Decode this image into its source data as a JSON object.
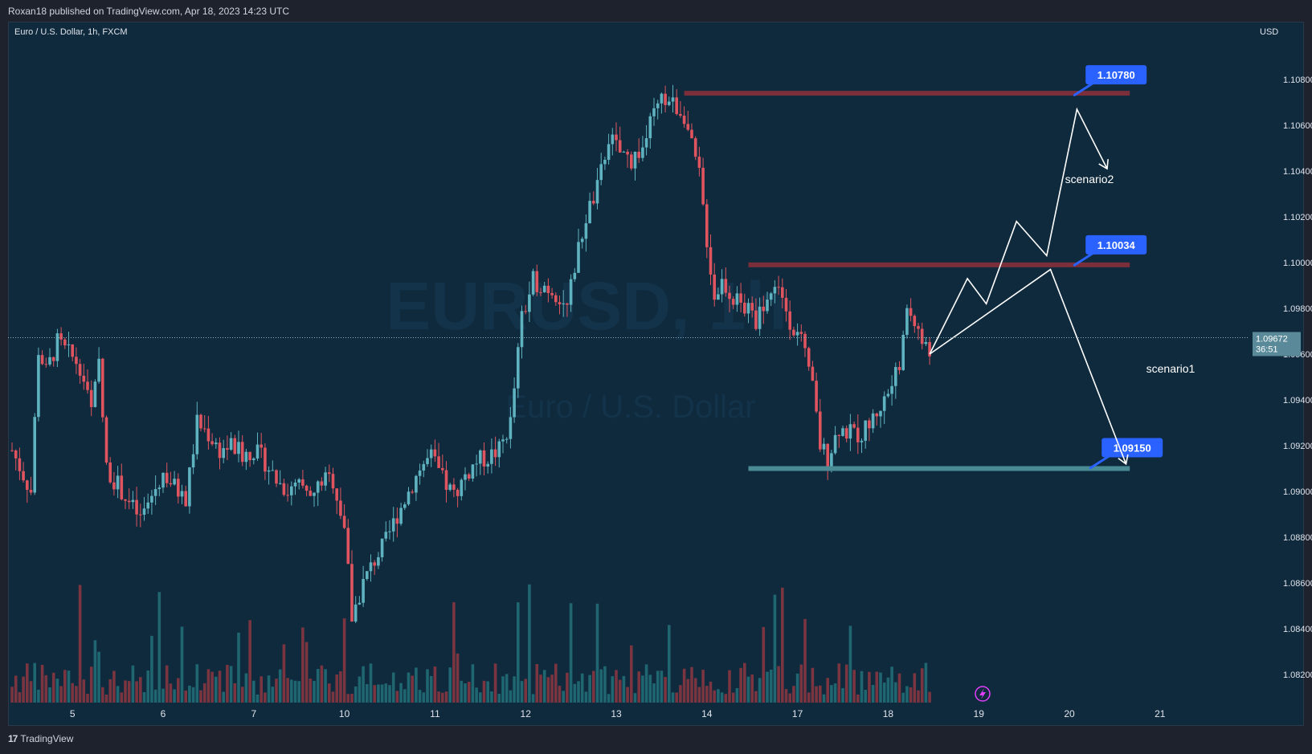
{
  "header": {
    "publish_info": "Roxan18 published on TradingView.com, Apr 18, 2023 14:23 UTC",
    "symbol_line": "Euro / U.S. Dollar, 1h, FXCM",
    "currency": "USD"
  },
  "watermark": {
    "line1": "EURUSD, 1h",
    "line2": "Euro / U.S. Dollar"
  },
  "footer": {
    "logo": "TradingView",
    "logo_mark": "17"
  },
  "colors": {
    "background": "#0f2a3d",
    "up": "#5fb3c0",
    "down": "#e0545f",
    "level_red": "#7a2f3b",
    "level_teal": "#4a8a95",
    "label_blue": "#2962ff",
    "annotation": "#ffffff",
    "price_tag": "#5a8a99"
  },
  "chart_data": {
    "type": "candlestick",
    "symbol": "EURUSD",
    "interval": "1h",
    "ylim": [
      1.0812,
      1.1102
    ],
    "y_ticks": [
      "1.10800",
      "1.10600",
      "1.10400",
      "1.10200",
      "1.10000",
      "1.09800",
      "1.09600",
      "1.09400",
      "1.09200",
      "1.09000",
      "1.08800",
      "1.08600",
      "1.08400",
      "1.08200"
    ],
    "x_ticks": [
      "5",
      "6",
      "7",
      "10",
      "11",
      "12",
      "13",
      "14",
      "17",
      "18",
      "19",
      "20",
      "21"
    ],
    "last_price": "1.09672",
    "countdown": "36:51",
    "close_path": [
      [
        0,
        1.0918
      ],
      [
        10,
        1.09
      ],
      [
        14,
        1.0962
      ],
      [
        18,
        1.0952
      ],
      [
        24,
        1.0965
      ],
      [
        30,
        1.096
      ],
      [
        36,
        1.0955
      ],
      [
        42,
        1.0935
      ],
      [
        46,
        1.0955
      ],
      [
        50,
        1.091
      ],
      [
        56,
        1.0903
      ],
      [
        62,
        1.0895
      ],
      [
        68,
        1.0888
      ],
      [
        74,
        1.0898
      ],
      [
        80,
        1.0908
      ],
      [
        86,
        1.0902
      ],
      [
        92,
        1.0896
      ],
      [
        98,
        1.093
      ],
      [
        104,
        1.0925
      ],
      [
        110,
        1.0918
      ],
      [
        116,
        1.092
      ],
      [
        122,
        1.0916
      ],
      [
        128,
        1.0918
      ],
      [
        134,
        1.0913
      ],
      [
        140,
        1.0905
      ],
      [
        146,
        1.09
      ],
      [
        152,
        1.0902
      ],
      [
        158,
        1.0896
      ],
      [
        164,
        1.0905
      ],
      [
        170,
        1.0905
      ],
      [
        176,
        1.0885
      ],
      [
        180,
        1.0845
      ],
      [
        186,
        1.086
      ],
      [
        192,
        1.087
      ],
      [
        198,
        1.0878
      ],
      [
        204,
        1.089
      ],
      [
        210,
        1.09
      ],
      [
        216,
        1.091
      ],
      [
        222,
        1.0915
      ],
      [
        228,
        1.0905
      ],
      [
        234,
        1.0898
      ],
      [
        240,
        1.0907
      ],
      [
        246,
        1.0913
      ],
      [
        252,
        1.0915
      ],
      [
        258,
        1.0918
      ],
      [
        264,
        1.093
      ],
      [
        270,
        1.0975
      ],
      [
        276,
        1.0992
      ],
      [
        282,
        1.099
      ],
      [
        288,
        1.0987
      ],
      [
        294,
        1.098
      ],
      [
        298,
        1.0998
      ],
      [
        304,
        1.102
      ],
      [
        310,
        1.1032
      ],
      [
        316,
        1.1055
      ],
      [
        322,
        1.1048
      ],
      [
        328,
        1.1045
      ],
      [
        334,
        1.105
      ],
      [
        340,
        1.1065
      ],
      [
        346,
        1.1072
      ],
      [
        352,
        1.1068
      ],
      [
        356,
        1.1065
      ],
      [
        360,
        1.105
      ],
      [
        364,
        1.1038
      ],
      [
        368,
        1.101
      ],
      [
        372,
        1.0985
      ],
      [
        376,
        1.0992
      ],
      [
        382,
        1.0985
      ],
      [
        388,
        1.098
      ],
      [
        394,
        1.0975
      ],
      [
        400,
        1.0985
      ],
      [
        406,
        1.099
      ],
      [
        412,
        1.0975
      ],
      [
        418,
        1.0965
      ],
      [
        424,
        1.0945
      ],
      [
        428,
        1.092
      ],
      [
        432,
        1.0915
      ],
      [
        438,
        1.0928
      ],
      [
        444,
        1.0925
      ],
      [
        450,
        1.0925
      ],
      [
        456,
        1.0932
      ],
      [
        462,
        1.094
      ],
      [
        468,
        1.095
      ],
      [
        472,
        1.0965
      ],
      [
        474,
        1.098
      ],
      [
        478,
        1.0975
      ],
      [
        482,
        1.0965
      ],
      [
        486,
        1.096
      ]
    ],
    "levels": [
      {
        "price": 1.1074,
        "label": "1.10780",
        "from_hour": 356,
        "to_hour": 592,
        "color": "red"
      },
      {
        "price": 1.0999,
        "label": "1.10034",
        "from_hour": 390,
        "to_hour": 592,
        "color": "red"
      },
      {
        "price": 1.091,
        "label": "1.09150",
        "from_hour": 390,
        "to_hour": 592,
        "color": "teal"
      }
    ],
    "scenarios": [
      {
        "name": "scenario1",
        "path": [
          [
            486,
            1.096
          ],
          [
            550,
            1.0997
          ],
          [
            590,
            1.0912
          ]
        ]
      },
      {
        "name": "scenario2",
        "path": [
          [
            486,
            1.096
          ],
          [
            506,
            1.0993
          ],
          [
            516,
            1.0982
          ],
          [
            532,
            1.1018
          ],
          [
            548,
            1.1003
          ],
          [
            564,
            1.1067
          ],
          [
            580,
            1.1041
          ]
        ]
      }
    ]
  }
}
